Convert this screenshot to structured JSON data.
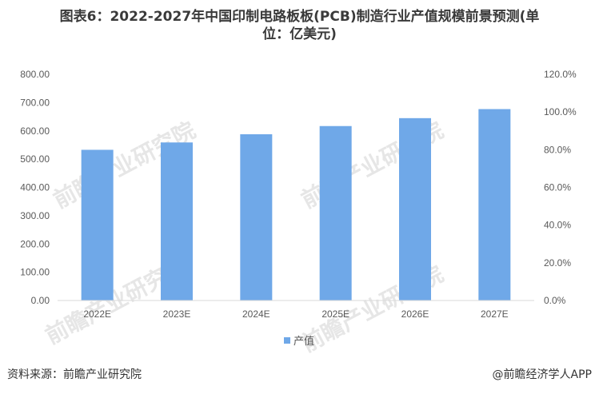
{
  "title_line1": "图表6：2022-2027年中国印制电路板板(PCB)制造行业产值规模前景预测(单",
  "title_line2": "位：亿美元)",
  "source": "资料来源：前瞻产业研究院",
  "credit": "@前瞻经济学人APP",
  "watermark": "前瞻产业研究院",
  "colors": {
    "bar": "#6fa8e8",
    "axis": "#d9d9d9",
    "tick": "#595959"
  },
  "chart_data": {
    "type": "bar",
    "categories": [
      "2022E",
      "2023E",
      "2024E",
      "2025E",
      "2026E",
      "2027E"
    ],
    "series": [
      {
        "name": "产值",
        "values": [
          533,
          559,
          588,
          617,
          645,
          677
        ]
      }
    ],
    "ylim": [
      0,
      800
    ],
    "y_ticks": [
      "0.00",
      "100.00",
      "200.00",
      "300.00",
      "400.00",
      "500.00",
      "600.00",
      "700.00",
      "800.00"
    ],
    "y2lim": [
      0,
      120
    ],
    "y2_ticks": [
      "0.0%",
      "20.0%",
      "40.0%",
      "60.0%",
      "80.0%",
      "100.0%",
      "120.0%"
    ],
    "legend_position": "bottom",
    "grid": false
  }
}
